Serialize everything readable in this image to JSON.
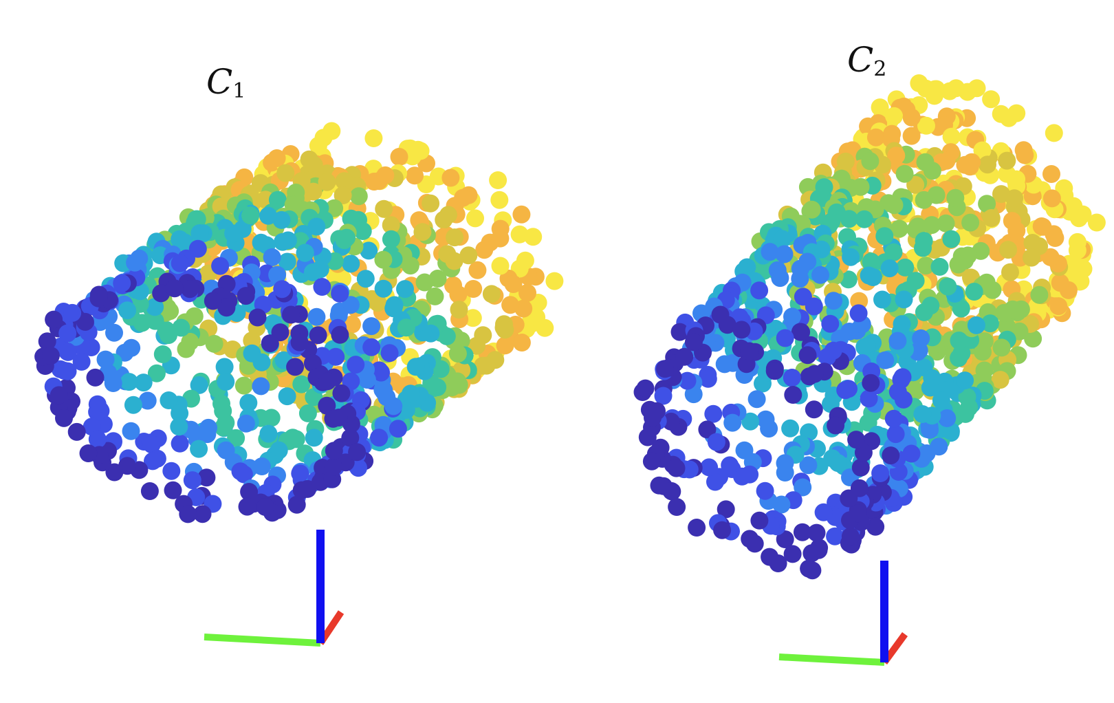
{
  "figure": {
    "panels": [
      {
        "id": "c1",
        "label_letter": "C",
        "label_subscript": "1",
        "axes": {
          "x_color": "#e8392b",
          "y_color": "#6ef23c",
          "z_color": "#1010f0"
        }
      },
      {
        "id": "c2",
        "label_letter": "C",
        "label_subscript": "2",
        "axes": {
          "x_color": "#e8392b",
          "y_color": "#6ef23c",
          "z_color": "#1010f0"
        }
      }
    ],
    "colormap": [
      "#3b2fb0",
      "#3f51e6",
      "#3a84ee",
      "#2bb0d0",
      "#3cc3a0",
      "#8fcc5a",
      "#d8c441",
      "#f5b543",
      "#f8e744"
    ]
  }
}
